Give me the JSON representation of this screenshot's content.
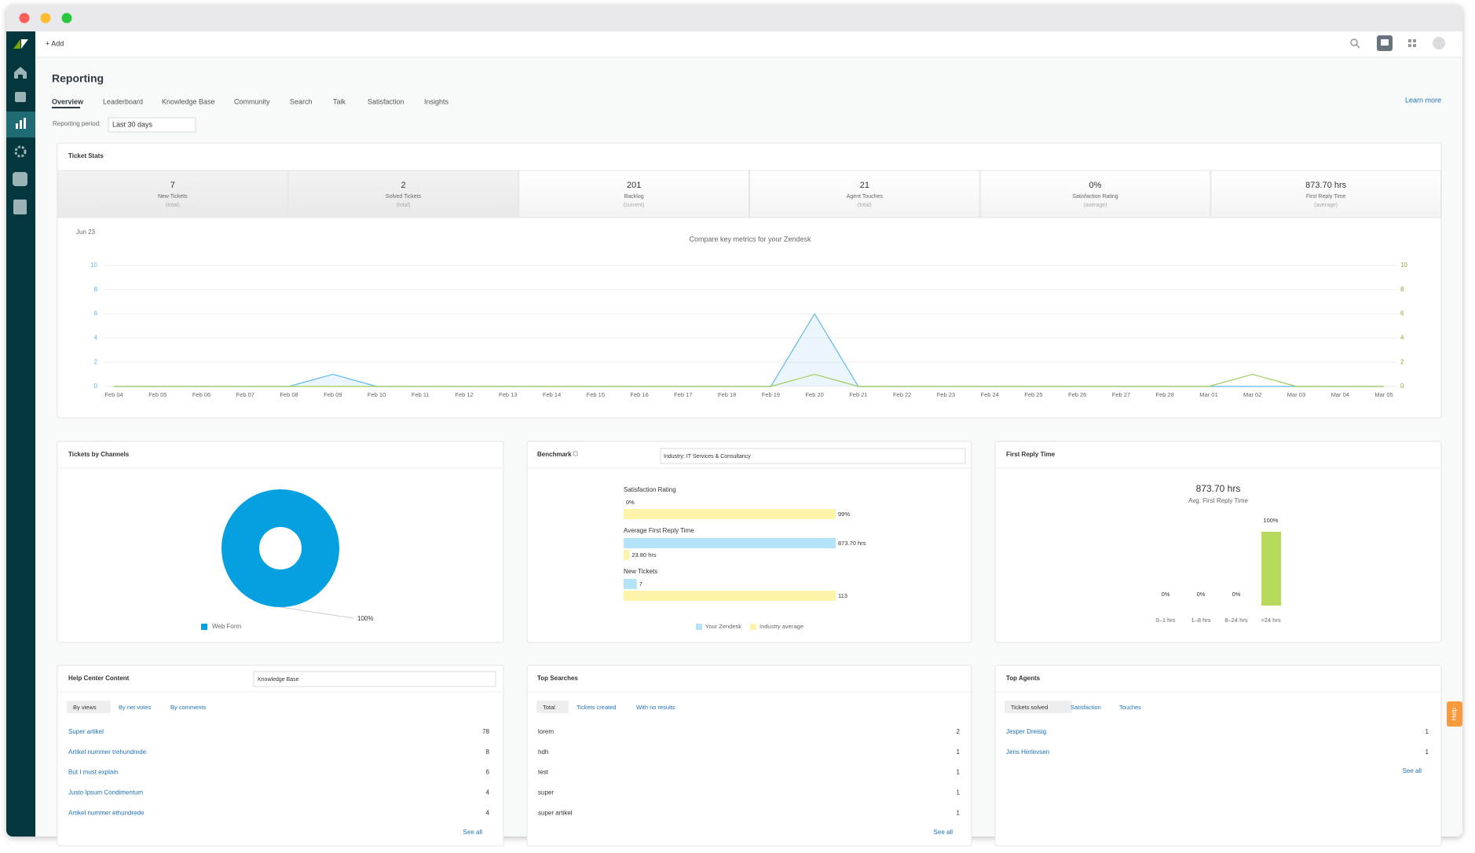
{
  "top_bar": {
    "add": "+ Add"
  },
  "header": {
    "title": "Reporting",
    "tabs": [
      "Overview",
      "Leaderboard",
      "Knowledge Base",
      "Community",
      "Search",
      "Talk",
      "Satisfaction",
      "Insights"
    ],
    "learn_more": "Learn more",
    "period_label": "Reporting period:",
    "period_value": "Last 30 days"
  },
  "ticket_stats": {
    "title": "Ticket Stats",
    "stats": [
      {
        "value": "7",
        "label": "New Tickets",
        "note": "(total)"
      },
      {
        "value": "2",
        "label": "Solved Tickets",
        "note": "(total)"
      },
      {
        "value": "201",
        "label": "Backlog",
        "note": "(current)"
      },
      {
        "value": "21",
        "label": "Agent Touches",
        "note": "(total)"
      },
      {
        "value": "0%",
        "label": "Satisfaction Rating",
        "note": "(average)"
      },
      {
        "value": "873.70 hrs",
        "label": "First Reply Time",
        "note": "(average)"
      }
    ],
    "chart": {
      "type": "line",
      "corner_label": "Jun 23",
      "title": "Compare key metrics for your Zendesk",
      "categories": [
        "Feb 04",
        "Feb 05",
        "Feb 06",
        "Feb 07",
        "Feb 08",
        "Feb 09",
        "Feb 10",
        "Feb 11",
        "Feb 12",
        "Feb 13",
        "Feb 14",
        "Feb 15",
        "Feb 16",
        "Feb 17",
        "Feb 18",
        "Feb 19",
        "Feb 20",
        "Feb 21",
        "Feb 22",
        "Feb 23",
        "Feb 24",
        "Feb 25",
        "Feb 26",
        "Feb 27",
        "Feb 28",
        "Mar 01",
        "Mar 02",
        "Mar 03",
        "Mar 04",
        "Mar 05"
      ],
      "series": [
        {
          "color": "#5cb8e6",
          "values": [
            0,
            0,
            0,
            0,
            0,
            1,
            0,
            0,
            0,
            0,
            0,
            0,
            0,
            0,
            0,
            0,
            6,
            0,
            0,
            0,
            0,
            0,
            0,
            0,
            0,
            0,
            0,
            0,
            0,
            0
          ]
        },
        {
          "color": "#9fcb5a",
          "axis": "y2",
          "values": [
            0,
            0,
            0,
            0,
            0,
            0,
            0,
            0,
            0,
            0,
            0,
            0,
            0,
            0,
            0,
            0,
            1,
            0,
            0,
            0,
            0,
            0,
            0,
            0,
            0,
            0,
            1,
            0,
            0,
            0
          ]
        }
      ],
      "ylim": [
        0,
        10
      ],
      "yticks": [
        0,
        2,
        4,
        6,
        8,
        10
      ],
      "y2lim": [
        0,
        10
      ],
      "y2ticks": [
        0,
        2,
        4,
        6,
        8,
        10
      ],
      "grid": true
    }
  },
  "channels": {
    "title": "Tickets by Channels",
    "chart": {
      "type": "pie",
      "categories": [
        "Web Form"
      ],
      "values": [
        100
      ],
      "value_labels": [
        "100%"
      ],
      "colors": [
        "#05a0e0"
      ]
    }
  },
  "benchmark": {
    "title": "Benchmark",
    "filter": "Industry: IT Services & Consultancy",
    "chart": {
      "type": "bar",
      "orientation": "horizontal",
      "categories": [
        "Satisfaction Rating",
        "Average First Reply Time",
        "New Tickets"
      ],
      "series": [
        {
          "name": "Your Zendesk",
          "color": "#b3e3f8",
          "values": [
            0,
            873.7,
            7
          ],
          "value_labels": [
            "0%",
            "873.70 hrs",
            "7"
          ]
        },
        {
          "name": "Industry average",
          "color": "#fdf3a9",
          "values": [
            99,
            23.8,
            113
          ],
          "value_labels": [
            "99%",
            "23.80 hrs",
            "113"
          ]
        }
      ]
    }
  },
  "first_reply": {
    "title": "First Reply Time",
    "headline": "873.70 hrs",
    "subtitle": "Avg. First Reply Time",
    "chart": {
      "type": "bar",
      "categories": [
        "0–1 hrs",
        "1–8 hrs",
        "8–24 hrs",
        ">24 hrs"
      ],
      "values": [
        0,
        0,
        0,
        100
      ],
      "value_labels": [
        "0%",
        "0%",
        "0%",
        "100%"
      ],
      "ylim": [
        0,
        100
      ],
      "color": "#b8da5c"
    }
  },
  "help_center": {
    "title": "Help Center Content",
    "filter": "Knowledge Base",
    "tabs": [
      "By views",
      "By net votes",
      "By comments"
    ],
    "rows": [
      {
        "name": "Super artikel",
        "count": 78
      },
      {
        "name": "Artikel nummer trehundrede",
        "count": 8
      },
      {
        "name": "But I must explain",
        "count": 6
      },
      {
        "name": "Justo Ipsum Condimentum",
        "count": 4
      },
      {
        "name": "Artikel nummer ethundrede",
        "count": 4
      }
    ],
    "see_all": "See all"
  },
  "top_searches": {
    "title": "Top Searches",
    "tabs": [
      "Total",
      "Tickets created",
      "With no results"
    ],
    "rows": [
      {
        "name": "lorem",
        "count": 2
      },
      {
        "name": "hdh",
        "count": 1
      },
      {
        "name": "test",
        "count": 1
      },
      {
        "name": "super",
        "count": 1
      },
      {
        "name": "super artikel",
        "count": 1
      }
    ],
    "see_all": "See all"
  },
  "top_agents": {
    "title": "Top Agents",
    "tabs": [
      "Tickets solved",
      "Satisfaction",
      "Touches"
    ],
    "rows": [
      {
        "name": "Jesper Dreisig",
        "count": 1
      },
      {
        "name": "Jens Herlevsen",
        "count": 1
      }
    ],
    "see_all": "See all"
  },
  "help_button": "Help"
}
